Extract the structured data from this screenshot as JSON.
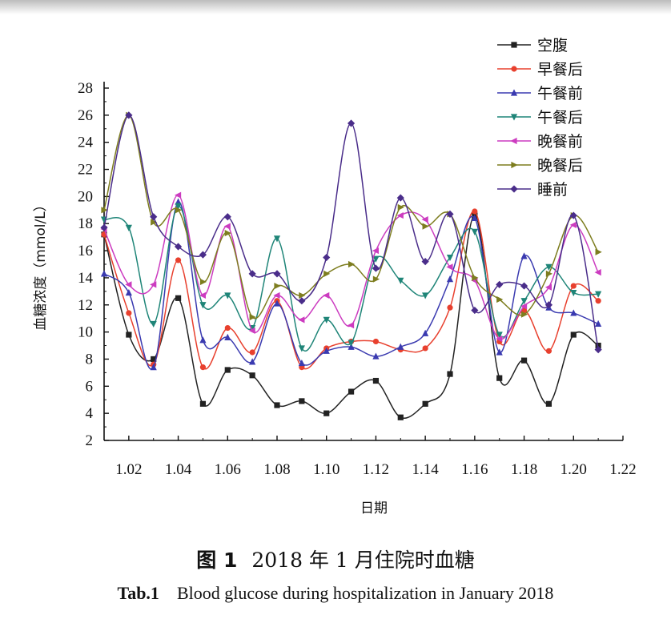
{
  "chart_data": {
    "type": "line",
    "xlabel": "日期",
    "ylabel": "血糖浓度（mmol/L）",
    "xlim": [
      1.01,
      1.22
    ],
    "ylim": [
      2,
      28
    ],
    "x_ticks": [
      "1.02",
      "1.04",
      "1.06",
      "1.08",
      "1.10",
      "1.12",
      "1.14",
      "1.16",
      "1.18",
      "1.20",
      "1.22"
    ],
    "y_ticks": [
      "2",
      "4",
      "6",
      "8",
      "10",
      "12",
      "14",
      "16",
      "18",
      "20",
      "22",
      "24",
      "26",
      "28"
    ],
    "legend_position": "top-right",
    "grid": false,
    "x": [
      1.01,
      1.02,
      1.03,
      1.04,
      1.05,
      1.06,
      1.07,
      1.08,
      1.09,
      1.1,
      1.11,
      1.12,
      1.13,
      1.14,
      1.15,
      1.16,
      1.17,
      1.18,
      1.19,
      1.2,
      1.21
    ],
    "series": [
      {
        "name": "空腹",
        "color": "#222222",
        "marker": "square",
        "values": [
          17.2,
          9.8,
          8.0,
          12.5,
          4.7,
          7.2,
          6.8,
          4.6,
          4.9,
          4.0,
          5.6,
          6.4,
          3.7,
          4.7,
          6.9,
          18.6,
          6.6,
          7.9,
          4.7,
          9.8,
          9.0
        ]
      },
      {
        "name": "早餐后",
        "color": "#e8402e",
        "marker": "circle",
        "values": [
          17.2,
          11.4,
          7.6,
          15.3,
          7.4,
          10.3,
          8.5,
          12.3,
          7.4,
          8.8,
          9.3,
          9.3,
          8.7,
          8.8,
          11.8,
          18.9,
          9.3,
          11.6,
          8.6,
          13.4,
          12.3
        ]
      },
      {
        "name": "午餐前",
        "color": "#3a3ab0",
        "marker": "triangle-up",
        "values": [
          14.3,
          12.9,
          7.4,
          19.6,
          9.4,
          9.6,
          7.8,
          12.1,
          7.7,
          8.6,
          8.9,
          8.2,
          8.9,
          9.9,
          13.9,
          18.4,
          8.5,
          15.6,
          11.8,
          11.4,
          10.6
        ]
      },
      {
        "name": "午餐后",
        "color": "#1f8578",
        "marker": "triangle-down",
        "values": [
          18.3,
          17.7,
          10.6,
          19.3,
          12.0,
          12.7,
          10.3,
          16.9,
          8.8,
          10.9,
          9.2,
          15.4,
          13.8,
          12.7,
          15.5,
          17.4,
          9.8,
          12.3,
          14.8,
          12.9,
          12.8
        ]
      },
      {
        "name": "晚餐前",
        "color": "#cc3cc0",
        "marker": "triangle-left",
        "values": [
          17.6,
          13.5,
          13.5,
          20.1,
          12.7,
          17.8,
          10.1,
          12.7,
          10.9,
          12.7,
          10.5,
          16.0,
          18.6,
          18.3,
          14.8,
          13.8,
          9.5,
          11.9,
          13.3,
          17.9,
          14.4
        ]
      },
      {
        "name": "晚餐后",
        "color": "#7d7d1f",
        "marker": "triangle-right",
        "values": [
          19.0,
          26.0,
          18.1,
          19.0,
          13.7,
          17.3,
          11.1,
          13.4,
          12.7,
          14.3,
          15.0,
          13.9,
          19.2,
          17.8,
          18.7,
          14.0,
          12.4,
          11.3,
          14.3,
          18.6,
          15.9
        ]
      },
      {
        "name": "睡前",
        "color": "#4a2d8a",
        "marker": "diamond",
        "values": [
          17.7,
          26.0,
          18.5,
          16.3,
          15.7,
          18.5,
          14.3,
          14.3,
          12.3,
          15.5,
          25.4,
          14.7,
          19.9,
          15.2,
          18.7,
          11.6,
          13.5,
          13.4,
          12.0,
          18.6,
          8.7
        ]
      }
    ]
  },
  "captions": {
    "cn_label": "图 1",
    "cn_text": "2018 年 1 月住院时血糖",
    "en_label": "Tab.1",
    "en_text": "Blood glucose during hospitalization in January 2018"
  }
}
